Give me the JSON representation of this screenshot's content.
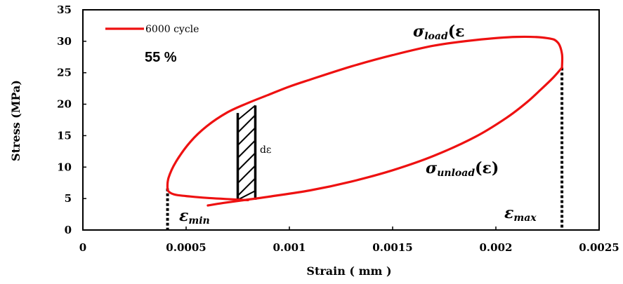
{
  "chart_data": {
    "type": "line",
    "xlabel": "Strain ( mm )",
    "ylabel": "Stress (MPa)",
    "xlim": [
      0,
      0.0025
    ],
    "ylim": [
      0,
      35
    ],
    "x_ticks": [
      "0",
      "0.0005",
      "0.001",
      "0.0015",
      "0.002",
      "0.0025"
    ],
    "y_ticks": [
      "0",
      "5",
      "10",
      "15",
      "20",
      "25",
      "30",
      "35"
    ],
    "x_tick_values": [
      0,
      0.0005,
      0.001,
      0.0015,
      0.002,
      0.0025
    ],
    "y_tick_values": [
      0,
      5,
      10,
      15,
      20,
      25,
      30,
      35
    ],
    "grid": false,
    "legend": {
      "position": "top-left",
      "entries": [
        "6000 cycle"
      ]
    },
    "series": [
      {
        "name": "6000 cycle",
        "color": "#ee1111",
        "loading": {
          "x": [
            0.000605,
            0.00068,
            0.00078,
            0.0009,
            0.0011,
            0.0013,
            0.0015,
            0.0017,
            0.0019,
            0.00205,
            0.00215,
            0.00222,
            0.00228,
            0.00232
          ],
          "y": [
            3.9,
            4.3,
            4.75,
            5.3,
            6.3,
            7.7,
            9.5,
            11.8,
            14.8,
            17.8,
            20.3,
            22.4,
            24.3,
            25.8
          ]
        },
        "unloading": {
          "x": [
            0.00232,
            0.00232,
            0.0023,
            0.00225,
            0.0021,
            0.0019,
            0.0017,
            0.0015,
            0.0013,
            0.0011,
            0.001,
            0.0009,
            0.0008,
            0.0007,
            0.0006,
            0.00052,
            0.00045,
            0.000415,
            0.00041,
            0.00042,
            0.00045,
            0.0005,
            0.0006,
            0.0008
          ],
          "y": [
            25.8,
            28.0,
            29.8,
            30.5,
            30.7,
            30.2,
            29.3,
            27.8,
            26.0,
            23.9,
            22.8,
            21.5,
            20.2,
            18.7,
            16.5,
            14.0,
            10.8,
            8.3,
            6.6,
            6.0,
            5.6,
            5.4,
            5.1,
            4.75
          ]
        }
      }
    ],
    "annotations": {
      "percent": "55 %",
      "sigma_load": "σ",
      "sigma_load_sub": "load",
      "sigma_load_arg": "(ε",
      "sigma_unload": "σ",
      "sigma_unload_sub": "unload",
      "sigma_unload_arg": "(ε)",
      "eps_min": "ε",
      "eps_min_sub": "min",
      "eps_max": "ε",
      "eps_max_sub": "max",
      "d_eps": "dε"
    },
    "strip": {
      "x_from": 0.00075,
      "x_to": 0.000835,
      "y_bottom": 4.8,
      "y_top_left": 18.6,
      "y_top_right": 19.8
    },
    "eps_min_x": 0.00041,
    "eps_min_y": 6.6,
    "eps_max_x": 0.00232,
    "eps_max_y": 25.8
  }
}
